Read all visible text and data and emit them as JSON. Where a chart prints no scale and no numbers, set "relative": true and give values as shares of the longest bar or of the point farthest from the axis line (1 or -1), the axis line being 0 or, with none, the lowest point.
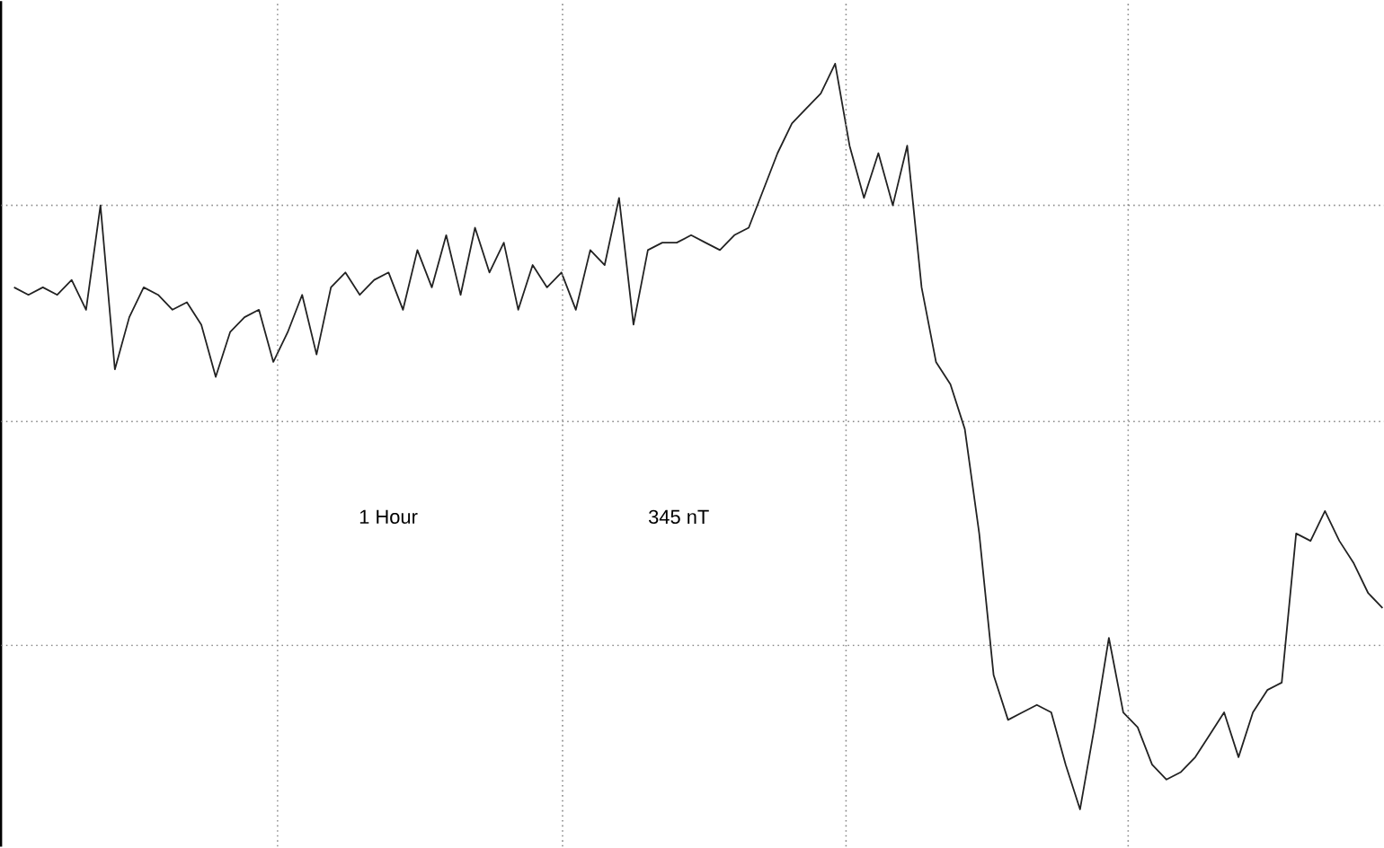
{
  "chart_data": {
    "type": "line",
    "relative": true,
    "categories": [
      null,
      null,
      null,
      null,
      null,
      null,
      null,
      null,
      null,
      null,
      null,
      null,
      null,
      null,
      null,
      null,
      null,
      null,
      null,
      null,
      null,
      null,
      null,
      null,
      null,
      null,
      null,
      null,
      null,
      null,
      null,
      null,
      null,
      null,
      null,
      null,
      null,
      null,
      null,
      null,
      null,
      null,
      null,
      null,
      null,
      null,
      null,
      null,
      null,
      null,
      null,
      null,
      null,
      null,
      null,
      null,
      null,
      null,
      null,
      null,
      null,
      null,
      null,
      null,
      null,
      null,
      null,
      null,
      null,
      null,
      null,
      null,
      null,
      null,
      null,
      null,
      null,
      null,
      null,
      null,
      null,
      null,
      null,
      null,
      null,
      null,
      null,
      null,
      null,
      null,
      null,
      null,
      null,
      null,
      null,
      null
    ],
    "series": [
      {
        "color": "#222222",
        "values": [
          0.7,
          0.69,
          0.7,
          0.69,
          0.71,
          0.67,
          0.81,
          0.59,
          0.66,
          0.7,
          0.69,
          0.67,
          0.68,
          0.65,
          0.58,
          0.64,
          0.66,
          0.67,
          0.6,
          0.64,
          0.69,
          0.61,
          0.7,
          0.72,
          0.69,
          0.71,
          0.72,
          0.67,
          0.75,
          0.7,
          0.77,
          0.69,
          0.78,
          0.72,
          0.76,
          0.67,
          0.73,
          0.7,
          0.72,
          0.67,
          0.75,
          0.73,
          0.82,
          0.65,
          0.75,
          0.76,
          0.76,
          0.77,
          0.76,
          0.75,
          0.77,
          0.78,
          0.83,
          0.88,
          0.92,
          0.94,
          0.96,
          1,
          0.89,
          0.82,
          0.88,
          0.81,
          0.89,
          0.7,
          0.6,
          0.57,
          0.51,
          0.37,
          0.18,
          0.12,
          0.13,
          0.14,
          0.13,
          0.06,
          0,
          0.11,
          0.23,
          0.13,
          0.11,
          0.06,
          0.04,
          0.05,
          0.07,
          0.1,
          0.13,
          0.07,
          0.13,
          0.16,
          0.17,
          0.37,
          0.36,
          0.4,
          0.36,
          0.33,
          0.29,
          0.27
        ]
      }
    ],
    "ref_lines": [
      {
        "axis": "y",
        "value": 0.81,
        "color": "#888888",
        "line_style": "dotted"
      },
      {
        "axis": "y",
        "value": 0.52,
        "color": "#888888",
        "line_style": "dotted"
      },
      {
        "axis": "y",
        "value": 0.22,
        "color": "#888888",
        "line_style": "dotted"
      }
    ],
    "annotations": [
      "1 Hour",
      "345 nT"
    ],
    "marker": "none",
    "line_style": "solid"
  }
}
